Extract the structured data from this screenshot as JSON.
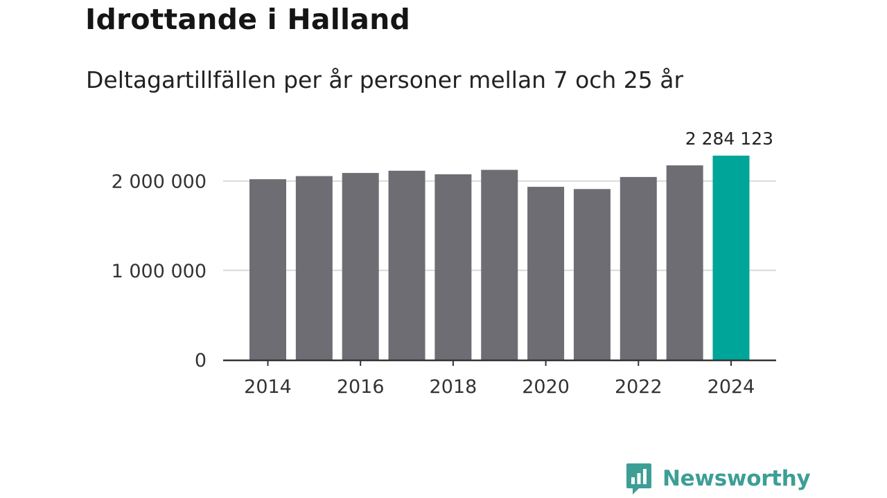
{
  "title": "Idrottande i Halland",
  "subtitle": "Deltagartillfällen per år personer mellan 7 och 25 år",
  "brand": {
    "name": "Newsworthy",
    "icon": "newsworthy-logo-icon",
    "color": "#3d9e96"
  },
  "chart_data": {
    "type": "bar",
    "categories": [
      "2014",
      "2015",
      "2016",
      "2017",
      "2018",
      "2019",
      "2020",
      "2021",
      "2022",
      "2023",
      "2024"
    ],
    "values": [
      2020000,
      2055000,
      2090000,
      2115000,
      2075000,
      2125000,
      1935000,
      1910000,
      2045000,
      2175000,
      2284123
    ],
    "x_tick_labels": [
      "2014",
      "2016",
      "2018",
      "2020",
      "2022",
      "2024"
    ],
    "y_ticks": [
      0,
      1000000,
      2000000
    ],
    "y_tick_labels": [
      "0",
      "1 000 000",
      "2 000 000"
    ],
    "ylim": [
      0,
      2300000
    ],
    "annotations": [
      {
        "category": "2024",
        "text": "2 284 123"
      }
    ],
    "grid": true,
    "bar_color": "#6e6d74",
    "highlight_color": "#00a59a",
    "highlight_category": "2024"
  }
}
